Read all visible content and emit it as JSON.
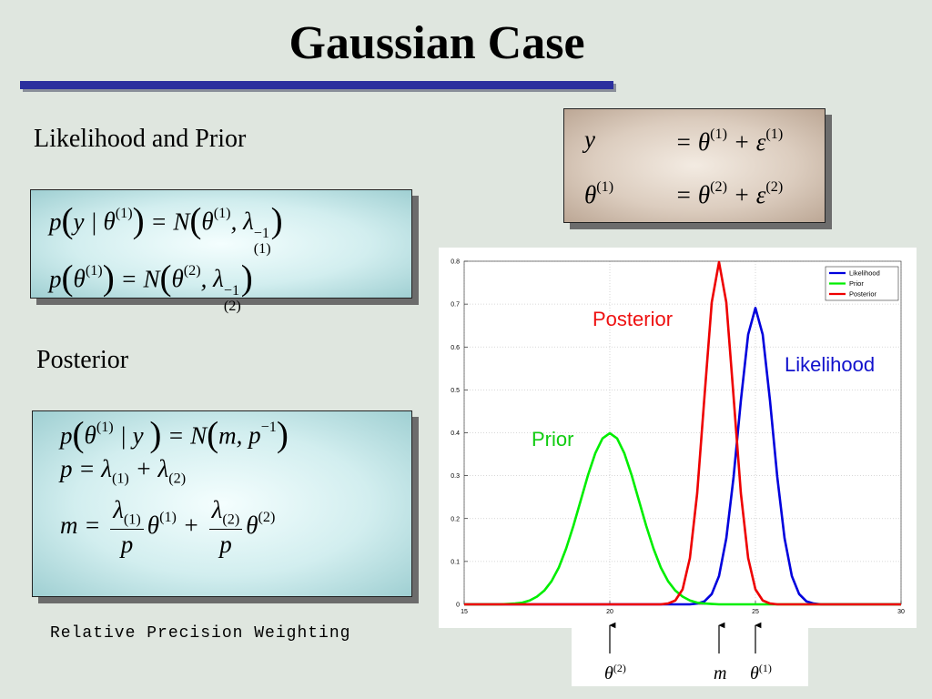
{
  "slide": {
    "title": "Gaussian Case",
    "likelihood_heading": "Likelihood and Prior",
    "likelihood_equations": [
      [
        "p",
        "(",
        "y | ",
        {
          "base": "θ",
          "sup": "(1)"
        },
        ")",
        " = N",
        "(",
        {
          "base": "θ",
          "sup": "(1)"
        },
        ", ",
        {
          "base": "λ",
          "sup": "−1",
          "sub": "(1)"
        },
        ")"
      ],
      [
        "p",
        "(",
        {
          "base": "θ",
          "sup": "(1)"
        },
        ")",
        " = N",
        "(",
        {
          "base": "θ",
          "sup": "(2)"
        },
        ", ",
        {
          "base": "λ",
          "sup": "−1",
          "sub": "(2)"
        },
        ")"
      ]
    ],
    "posterior_heading": "Posterior",
    "posterior_equations": [
      [
        "p",
        "(",
        {
          "base": "θ",
          "sup": "(1)"
        },
        " | y ",
        ")",
        " = N",
        "(",
        "m, ",
        {
          "base": "p",
          "sup": "−1"
        },
        ")"
      ],
      [
        "p = ",
        {
          "base": "λ",
          "sub": "(1)"
        },
        " + ",
        {
          "base": "λ",
          "sub": "(2)"
        }
      ],
      [
        "m = ",
        {
          "num": [
            {
              "base": "λ",
              "sub": "(1)"
            }
          ],
          "den": [
            "p"
          ]
        },
        {
          "base": "θ",
          "sup": "(1)"
        },
        " + ",
        {
          "num": [
            {
              "base": "λ",
              "sub": "(2)"
            }
          ],
          "den": [
            "p"
          ]
        },
        {
          "base": "θ",
          "sup": "(2)"
        }
      ]
    ],
    "model_equations": [
      {
        "lhs": [
          "y"
        ],
        "rhs": [
          "= ",
          {
            "base": "θ",
            "sup": "(1)"
          },
          " + ",
          {
            "base": "ε",
            "sup": "(1)"
          }
        ]
      },
      {
        "lhs": [
          {
            "base": "θ",
            "sup": "(1)"
          }
        ],
        "rhs": [
          "= ",
          {
            "base": "θ",
            "sup": "(2)"
          },
          " + ",
          {
            "base": "ε",
            "sup": "(2)"
          }
        ]
      }
    ],
    "caption": "Relative Precision Weighting"
  },
  "chart_data": {
    "type": "line",
    "x": [
      15,
      15.25,
      15.5,
      15.75,
      16,
      16.25,
      16.5,
      16.75,
      17,
      17.25,
      17.5,
      17.75,
      18,
      18.25,
      18.5,
      18.75,
      19,
      19.25,
      19.5,
      19.75,
      20,
      20.25,
      20.5,
      20.75,
      21,
      21.25,
      21.5,
      21.75,
      22,
      22.25,
      22.5,
      22.75,
      23,
      23.25,
      23.5,
      23.75,
      24,
      24.25,
      24.5,
      24.75,
      25,
      25.25,
      25.5,
      25.75,
      26,
      26.25,
      26.5,
      26.75,
      27,
      27.25,
      27.5,
      27.75,
      28,
      28.25,
      28.5,
      28.75,
      29,
      29.25,
      29.5,
      29.75,
      30
    ],
    "series": [
      {
        "name": "Likelihood",
        "color": "#0000dd",
        "values": [
          0,
          0,
          0,
          0,
          0,
          0,
          0,
          0,
          0,
          0,
          0,
          0,
          0,
          0,
          0,
          0,
          0,
          0,
          0,
          0,
          0,
          0,
          0,
          0,
          0,
          0,
          0,
          0,
          0,
          0,
          0,
          0,
          0.002,
          0.007,
          0.024,
          0.066,
          0.154,
          0.297,
          0.475,
          0.629,
          0.691,
          0.629,
          0.475,
          0.297,
          0.154,
          0.066,
          0.024,
          0.007,
          0.002,
          0,
          0,
          0,
          0,
          0,
          0,
          0,
          0,
          0,
          0,
          0,
          0
        ]
      },
      {
        "name": "Prior",
        "color": "#00ee00",
        "values": [
          0,
          0,
          0,
          0,
          0,
          0,
          0.001,
          0.002,
          0.004,
          0.009,
          0.018,
          0.032,
          0.054,
          0.086,
          0.13,
          0.183,
          0.242,
          0.301,
          0.352,
          0.387,
          0.399,
          0.387,
          0.352,
          0.301,
          0.242,
          0.183,
          0.13,
          0.086,
          0.054,
          0.032,
          0.018,
          0.009,
          0.004,
          0.002,
          0.001,
          0,
          0,
          0,
          0,
          0,
          0,
          0,
          0,
          0,
          0,
          0,
          0,
          0,
          0,
          0,
          0,
          0,
          0,
          0,
          0,
          0,
          0,
          0,
          0,
          0,
          0
        ]
      },
      {
        "name": "Posterior",
        "color": "#ee0000",
        "values": [
          0,
          0,
          0,
          0,
          0,
          0,
          0,
          0,
          0,
          0,
          0,
          0,
          0,
          0,
          0,
          0,
          0,
          0,
          0,
          0,
          0,
          0,
          0,
          0,
          0,
          0,
          0,
          0,
          0.002,
          0.009,
          0.035,
          0.108,
          0.259,
          0.484,
          0.704,
          0.798,
          0.704,
          0.484,
          0.259,
          0.108,
          0.035,
          0.009,
          0.002,
          0,
          0,
          0,
          0,
          0,
          0,
          0,
          0,
          0,
          0,
          0,
          0,
          0,
          0,
          0,
          0,
          0,
          0
        ]
      }
    ],
    "xlim": [
      15,
      30
    ],
    "ylim": [
      0,
      0.8
    ],
    "xticks": [
      15,
      20,
      25,
      30
    ],
    "yticks": [
      0,
      0.1,
      0.2,
      0.3,
      0.4,
      0.5,
      0.6,
      0.7,
      0.8
    ],
    "grid": true,
    "legend": "upper right",
    "annotations": [
      {
        "text": "Posterior",
        "color": "#ee1111"
      },
      {
        "text": "Likelihood",
        "color": "#1111cc"
      },
      {
        "text": "Prior",
        "color": "#11cc11"
      }
    ],
    "x_markers": [
      {
        "x": 20,
        "label": {
          "base": "θ",
          "sup": "(2)"
        }
      },
      {
        "x": 23.75,
        "label": {
          "base": "m"
        }
      },
      {
        "x": 25,
        "label": {
          "base": "θ",
          "sup": "(1)"
        }
      }
    ]
  }
}
